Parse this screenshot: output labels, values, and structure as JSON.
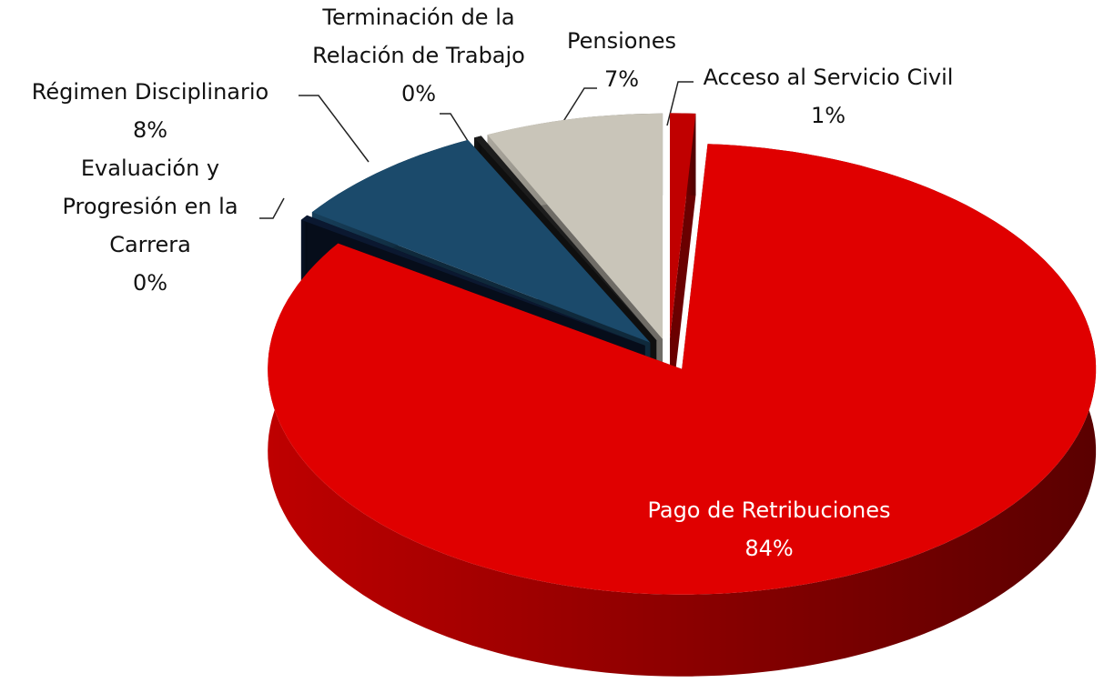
{
  "chart_data": {
    "type": "pie",
    "categories": [
      "Acceso al Servicio Civil",
      "Pago de Retribuciones",
      "Evaluación y Progresión en la Carrera",
      "Régimen Disciplinario",
      "Terminación de la Relación de Trabajo",
      "Pensiones"
    ],
    "values": [
      1,
      84,
      0.4,
      8,
      0.3,
      7
    ],
    "value_labels": [
      "1%",
      "84%",
      "0%",
      "8%",
      "0%",
      "7%"
    ],
    "colors": [
      "#c00000",
      "#e00000",
      "#0b1830",
      "#1b4a6b",
      "#1c1c1c",
      "#c9c5b9"
    ]
  }
}
